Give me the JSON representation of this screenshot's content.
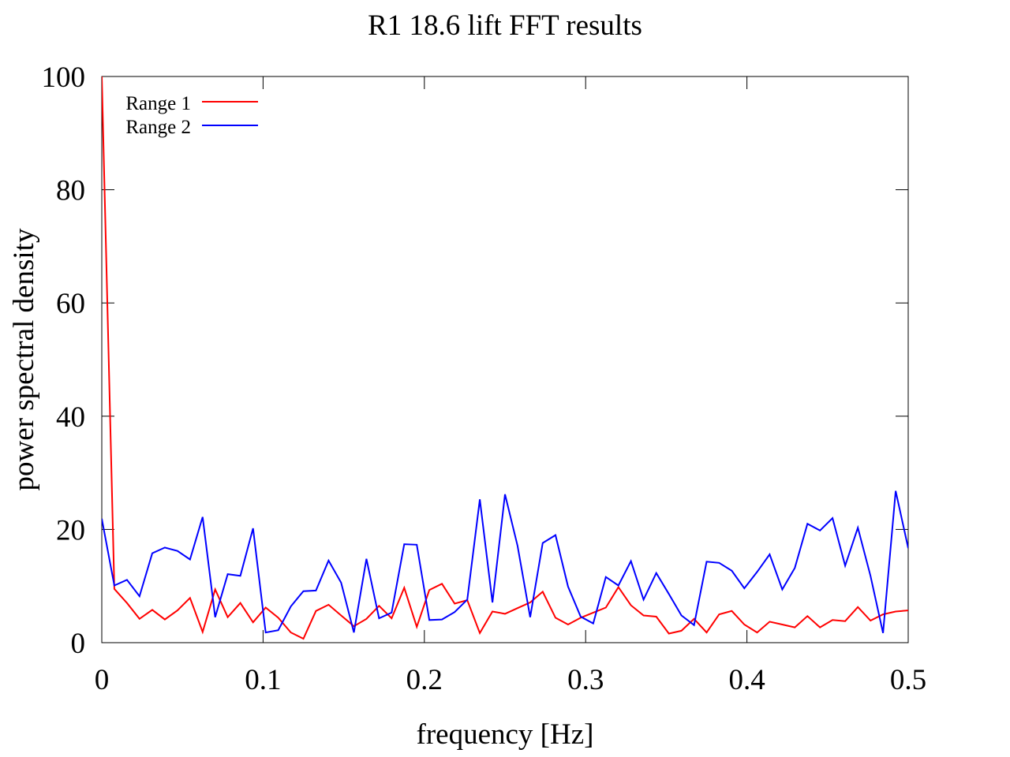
{
  "chart_data": {
    "type": "line",
    "title": "R1 18.6 lift FFT results",
    "xlabel": "frequency [Hz]",
    "ylabel": "power spectral density",
    "xlim": [
      0,
      0.5
    ],
    "ylim": [
      0,
      100
    ],
    "xticks": [
      "0",
      "0.1",
      "0.2",
      "0.3",
      "0.4",
      "0.5"
    ],
    "yticks": [
      "0",
      "20",
      "40",
      "60",
      "80",
      "100"
    ],
    "legend_position": "top-left",
    "grid": false,
    "series": [
      {
        "name": "Range 1",
        "color": "#ff0000",
        "x": [
          0,
          0.0078,
          0.0156,
          0.0234,
          0.0313,
          0.0391,
          0.0469,
          0.0547,
          0.0625,
          0.0703,
          0.0781,
          0.0859,
          0.0938,
          0.1016,
          0.1094,
          0.1172,
          0.125,
          0.1328,
          0.1406,
          0.1484,
          0.1563,
          0.1641,
          0.1719,
          0.1797,
          0.1875,
          0.1953,
          0.2031,
          0.2109,
          0.2188,
          0.2266,
          0.2344,
          0.2422,
          0.25,
          0.2578,
          0.2656,
          0.2734,
          0.2813,
          0.2891,
          0.2969,
          0.3047,
          0.3125,
          0.3203,
          0.3281,
          0.3359,
          0.3438,
          0.3516,
          0.3594,
          0.3672,
          0.375,
          0.3828,
          0.3906,
          0.3984,
          0.4063,
          0.4141,
          0.4219,
          0.4297,
          0.4375,
          0.4453,
          0.4531,
          0.4609,
          0.4688,
          0.4766,
          0.4844,
          0.4922,
          0.5
        ],
        "y": [
          100,
          9.5,
          7.0,
          4.2,
          5.8,
          4.1,
          5.7,
          7.9,
          1.9,
          9.4,
          4.5,
          7.0,
          3.6,
          6.2,
          4.4,
          1.8,
          0.7,
          5.6,
          6.7,
          4.8,
          2.9,
          4.2,
          6.5,
          4.3,
          9.7,
          2.8,
          9.3,
          10.4,
          6.9,
          7.5,
          1.7,
          5.5,
          5.1,
          6.1,
          7.1,
          9.0,
          4.4,
          3.2,
          4.4,
          5.3,
          6.2,
          9.8,
          6.6,
          4.8,
          4.6,
          1.6,
          2.1,
          4.2,
          1.8,
          5.0,
          5.6,
          3.2,
          1.8,
          3.7,
          3.2,
          2.7,
          4.7,
          2.7,
          4.0,
          3.8,
          6.3,
          3.9,
          5.0,
          5.5,
          5.7
        ]
      },
      {
        "name": "Range 2",
        "color": "#0000ff",
        "x": [
          0,
          0.0078,
          0.0156,
          0.0234,
          0.0313,
          0.0391,
          0.0469,
          0.0547,
          0.0625,
          0.0703,
          0.0781,
          0.0859,
          0.0938,
          0.1016,
          0.1094,
          0.1172,
          0.125,
          0.1328,
          0.1406,
          0.1484,
          0.1563,
          0.1641,
          0.1719,
          0.1797,
          0.1875,
          0.1953,
          0.2031,
          0.2109,
          0.2188,
          0.2266,
          0.2344,
          0.2422,
          0.25,
          0.2578,
          0.2656,
          0.2734,
          0.2813,
          0.2891,
          0.2969,
          0.3047,
          0.3125,
          0.3203,
          0.3281,
          0.3359,
          0.3438,
          0.3516,
          0.3594,
          0.3672,
          0.375,
          0.3828,
          0.3906,
          0.3984,
          0.4063,
          0.4141,
          0.4219,
          0.4297,
          0.4375,
          0.4453,
          0.4531,
          0.4609,
          0.4688,
          0.4766,
          0.4844,
          0.4922,
          0.5
        ],
        "y": [
          21.9,
          10.1,
          11.1,
          8.2,
          15.8,
          16.8,
          16.2,
          14.7,
          22.2,
          4.5,
          12.1,
          11.8,
          20.2,
          1.8,
          2.2,
          6.4,
          9.1,
          9.2,
          14.5,
          10.6,
          1.8,
          14.8,
          4.3,
          5.3,
          17.4,
          17.3,
          4.0,
          4.1,
          5.4,
          7.6,
          25.3,
          7.1,
          26.2,
          17.1,
          4.5,
          17.6,
          19.0,
          9.9,
          4.6,
          3.4,
          11.6,
          10.1,
          14.4,
          7.6,
          12.3,
          8.6,
          4.8,
          3.1,
          14.3,
          14.1,
          12.7,
          9.6,
          12.5,
          15.6,
          9.4,
          13.2,
          21.0,
          19.8,
          22.0,
          13.6,
          20.3,
          11.8,
          1.7,
          26.8,
          16.7
        ]
      }
    ]
  }
}
